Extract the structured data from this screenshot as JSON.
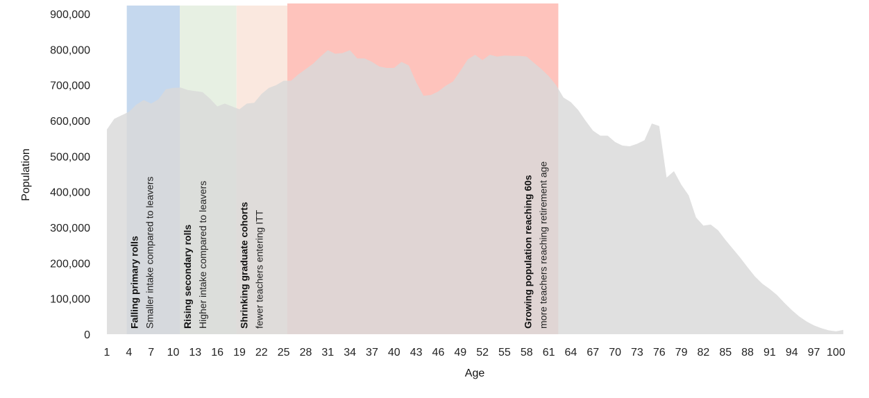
{
  "chart_data": {
    "type": "area",
    "title": "",
    "xlabel": "Age",
    "ylabel": "Population",
    "xlim": [
      1,
      101
    ],
    "ylim": [
      0,
      900000
    ],
    "y_ticks": [
      0,
      100000,
      200000,
      300000,
      400000,
      500000,
      600000,
      700000,
      800000,
      900000
    ],
    "y_tick_labels": [
      "0",
      "100,000",
      "200,000",
      "300,000",
      "400,000",
      "500,000",
      "600,000",
      "700,000",
      "800,000",
      "900,000"
    ],
    "x_ticks": [
      1,
      4,
      7,
      10,
      13,
      16,
      19,
      22,
      25,
      28,
      31,
      34,
      37,
      40,
      43,
      46,
      49,
      52,
      55,
      58,
      61,
      64,
      67,
      70,
      73,
      76,
      79,
      82,
      85,
      88,
      91,
      94,
      97,
      100
    ],
    "x_tick_labels": [
      "1",
      "4",
      "7",
      "10",
      "13",
      "16",
      "19",
      "22",
      "25",
      "28",
      "31",
      "34",
      "37",
      "40",
      "43",
      "46",
      "49",
      "52",
      "55",
      "58",
      "61",
      "64",
      "67",
      "70",
      "73",
      "76",
      "79",
      "82",
      "85",
      "88",
      "91",
      "94",
      "97",
      "100"
    ],
    "grid": false,
    "series": [
      {
        "color": "#d9d9d9",
        "x": [
          1,
          2,
          3,
          4,
          5,
          6,
          7,
          8,
          9,
          10,
          11,
          12,
          13,
          14,
          15,
          16,
          17,
          18,
          19,
          20,
          21,
          22,
          23,
          24,
          25,
          26,
          27,
          28,
          29,
          30,
          31,
          32,
          33,
          34,
          35,
          36,
          37,
          38,
          39,
          40,
          41,
          42,
          43,
          44,
          45,
          46,
          47,
          48,
          49,
          50,
          51,
          52,
          53,
          54,
          55,
          56,
          57,
          58,
          59,
          60,
          61,
          62,
          63,
          64,
          65,
          66,
          67,
          68,
          69,
          70,
          71,
          72,
          73,
          74,
          75,
          76,
          77,
          78,
          79,
          80,
          81,
          82,
          83,
          84,
          85,
          86,
          87,
          88,
          89,
          90,
          91,
          92,
          93,
          94,
          95,
          96,
          97,
          98,
          99,
          100,
          101
        ],
        "values": [
          575000,
          605000,
          615000,
          625000,
          645000,
          658000,
          648000,
          660000,
          688000,
          692000,
          693000,
          686000,
          683000,
          680000,
          662000,
          640000,
          648000,
          640000,
          632000,
          648000,
          650000,
          675000,
          692000,
          700000,
          712000,
          712000,
          730000,
          745000,
          760000,
          780000,
          798000,
          788000,
          790000,
          798000,
          775000,
          775000,
          765000,
          752000,
          748000,
          748000,
          765000,
          755000,
          708000,
          670000,
          672000,
          682000,
          698000,
          710000,
          740000,
          772000,
          785000,
          770000,
          785000,
          780000,
          783000,
          782000,
          782000,
          780000,
          762000,
          745000,
          725000,
          700000,
          665000,
          652000,
          630000,
          600000,
          572000,
          558000,
          558000,
          540000,
          530000,
          528000,
          535000,
          545000,
          592000,
          585000,
          440000,
          458000,
          420000,
          390000,
          328000,
          305000,
          308000,
          292000,
          265000,
          240000,
          215000,
          188000,
          162000,
          142000,
          127000,
          110000,
          88000,
          68000,
          50000,
          36000,
          25000,
          17000,
          11000,
          8000,
          12000
        ]
      }
    ],
    "bands": [
      {
        "x_start": 3.7,
        "x_end": 10.9,
        "color": "#c5d8ee",
        "title": "Falling primary rolls",
        "subtitle": "Smaller intake compared to leavers"
      },
      {
        "x_start": 10.9,
        "x_end": 18.6,
        "color": "#e7f0e3",
        "title": "Rising secondary rolls",
        "subtitle": "Higher intake compared to leavers"
      },
      {
        "x_start": 18.6,
        "x_end": 25.5,
        "color": "#fae8df",
        "title": "Shrinking graduate cohorts",
        "subtitle": "fewer teachers entering ITT"
      },
      {
        "x_start": 25.5,
        "x_end": 62.3,
        "color": "#fec3bc",
        "title": "Growing population reaching 60s",
        "subtitle": "more teachers reaching retirement age"
      }
    ]
  }
}
